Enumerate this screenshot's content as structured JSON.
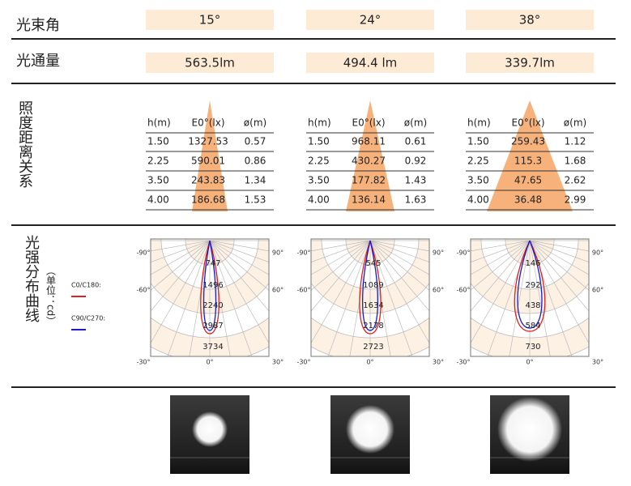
{
  "beam_angle": {
    "label": "光束角",
    "values": [
      "15°",
      "24°",
      "38°"
    ]
  },
  "luminous_flux": {
    "label": "光通量",
    "values": [
      "563.5lm",
      "494.4 lm",
      "339.7lm"
    ]
  },
  "illuminance": {
    "label": "照度距离关系",
    "header": [
      "h(m)",
      "E0°(lx)",
      "ø(m)"
    ],
    "tables": [
      [
        [
          "1.50",
          "1327.53",
          "0.57"
        ],
        [
          "2.25",
          "590.01",
          "0.86"
        ],
        [
          "3.50",
          "243.83",
          "1.34"
        ],
        [
          "4.00",
          "186.68",
          "1.53"
        ]
      ],
      [
        [
          "1.50",
          "968.11",
          "0.61"
        ],
        [
          "2.25",
          "430.27",
          "0.92"
        ],
        [
          "3.50",
          "177.82",
          "1.43"
        ],
        [
          "4.00",
          "136.14",
          "1.63"
        ]
      ],
      [
        [
          "1.50",
          "259.43",
          "1.12"
        ],
        [
          "2.25",
          "115.3",
          "1.68"
        ],
        [
          "3.50",
          "47.65",
          "2.62"
        ],
        [
          "4.00",
          "36.48",
          "2.99"
        ]
      ]
    ]
  },
  "intensity": {
    "label": "光强分布曲线",
    "unit": "（单位：cd）",
    "legend": [
      {
        "name": "C0/C180:",
        "color": "#e02020"
      },
      {
        "name": "C90/C270:",
        "color": "#1a1ad0"
      }
    ],
    "angles": [
      "-90°",
      "90°",
      "-60°",
      "60°",
      "-30°",
      "0°",
      "30°"
    ],
    "rings": [
      [
        747,
        1496,
        2240,
        2987,
        3734
      ],
      [
        545,
        1089,
        1634,
        2178,
        2723
      ],
      [
        146,
        292,
        438,
        584,
        730
      ]
    ]
  }
}
